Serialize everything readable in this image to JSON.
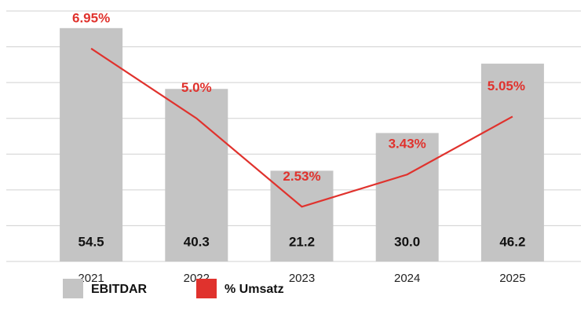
{
  "chart_data": {
    "type": "bar_line",
    "categories": [
      "2021",
      "2022",
      "2023",
      "2024",
      "2025"
    ],
    "series": [
      {
        "name": "EBITDAR",
        "color": "#c4c4c4",
        "type": "bar",
        "values": [
          54.5,
          40.3,
          21.2,
          30.0,
          46.2
        ],
        "value_labels": [
          "54.5",
          "40.3",
          "21.2",
          "30.0",
          "46.2"
        ]
      },
      {
        "name": "% Umsatz",
        "color": "#e0322d",
        "type": "line",
        "axis": "y2",
        "values": [
          6.95,
          5.0,
          2.53,
          3.43,
          5.05
        ],
        "value_labels": [
          "6.95%",
          "5.0%",
          "2.53%",
          "3.43%",
          "5.05%"
        ]
      }
    ],
    "ylim": [
      0,
      58.5
    ],
    "y2lim": [
      1,
      8
    ],
    "y2ticks": [
      1,
      2,
      3,
      4,
      5,
      6,
      7,
      8
    ],
    "grid": true,
    "legend": "bottom"
  }
}
